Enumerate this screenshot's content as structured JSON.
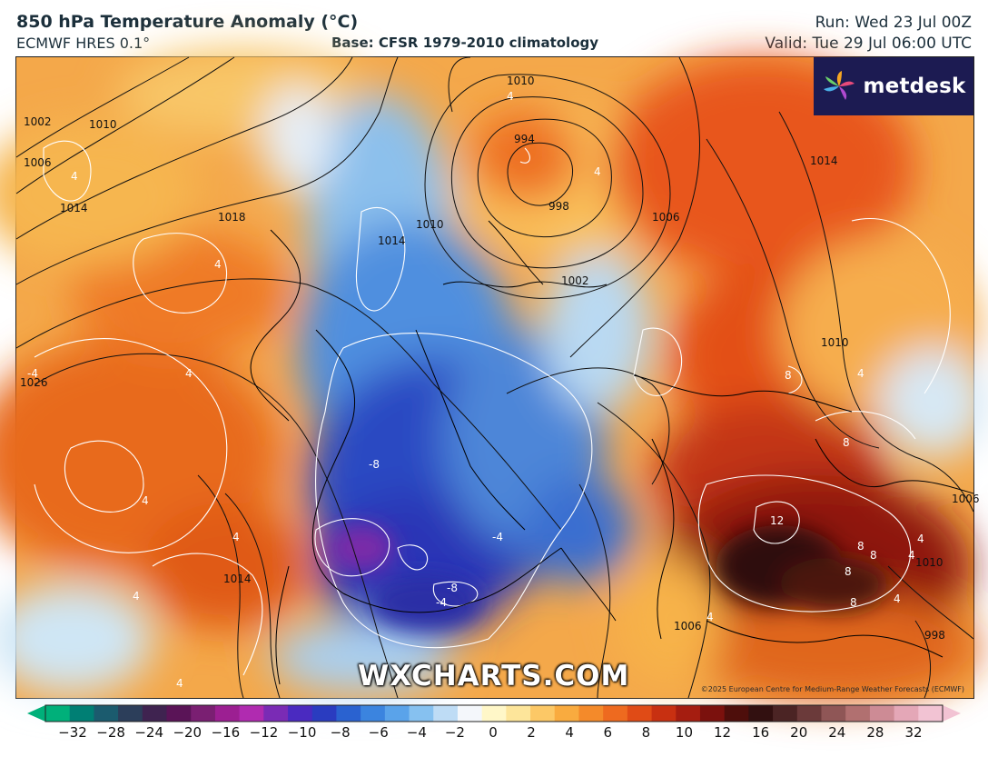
{
  "header": {
    "title": "850 hPa Temperature Anomaly (°C)",
    "model": "ECMWF HRES 0.1°",
    "base": "Base: CFSR 1979-2010 climatology",
    "run": "Run: Wed 23 Jul 00Z",
    "valid": "Valid: Tue 29 Jul 06:00 UTC"
  },
  "logo": {
    "name": "metdesk",
    "icon": "pinwheel-icon"
  },
  "watermark": "WXCHARTS.COM",
  "copyright": "©2025 European Centre for Medium-Range Weather Forecasts (ECMWF)",
  "pressure_labels": [
    "1002",
    "1006",
    "1010",
    "1014",
    "1018",
    "1026",
    "1010",
    "1014",
    "1010",
    "1006",
    "1002",
    "994",
    "998",
    "1006",
    "1014",
    "1010",
    "1014",
    "1006",
    "998",
    "1010"
  ],
  "anomaly_labels": [
    "4",
    "4",
    "4",
    "4",
    "-4",
    "4",
    "4",
    "4",
    "-8",
    "-4",
    "-8",
    "-4",
    "8",
    "4",
    "8",
    "12",
    "8",
    "8",
    "8",
    "8",
    "4",
    "4",
    "4",
    "4",
    "4",
    "4"
  ],
  "colorbar": {
    "ticks": [
      "−32",
      "−28",
      "−24",
      "−20",
      "−16",
      "−12",
      "−10",
      "−8",
      "−6",
      "−4",
      "−2",
      "0",
      "2",
      "4",
      "6",
      "8",
      "10",
      "12",
      "16",
      "20",
      "24",
      "28",
      "32"
    ],
    "colors": [
      "#00b07a",
      "#007f74",
      "#1b5b6e",
      "#2c3e5a",
      "#3f2350",
      "#5a1457",
      "#7a1f72",
      "#9c1f92",
      "#b02bb0",
      "#7a2bb5",
      "#4a2ac0",
      "#2a3cc0",
      "#2a62d0",
      "#3b84df",
      "#5aa3ea",
      "#86c1f0",
      "#bedcf5",
      "#f4f7fb",
      "#fff7c8",
      "#fde59a",
      "#fcc866",
      "#f9ab3f",
      "#f48a2a",
      "#ee6a1f",
      "#e04b16",
      "#c83011",
      "#a51d10",
      "#7b110d",
      "#4e0e0b",
      "#321010",
      "#4b2424",
      "#6b3a3a",
      "#8f5656",
      "#b17070",
      "#cd8b95",
      "#e4a7b7",
      "#f2c3d3"
    ]
  }
}
